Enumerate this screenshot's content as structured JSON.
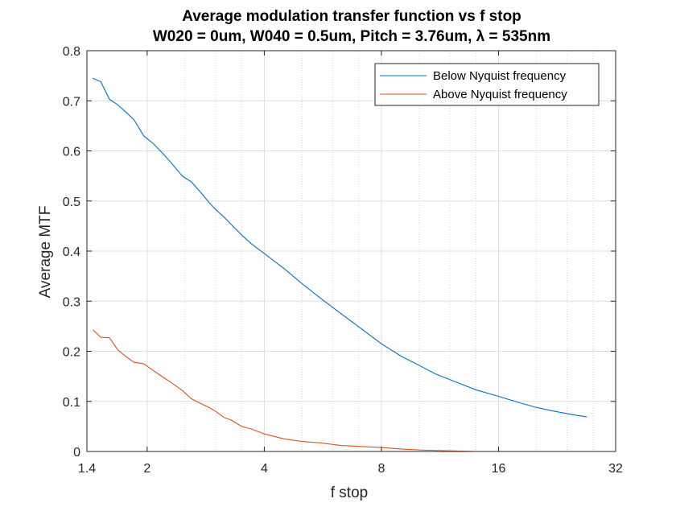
{
  "chart_data": {
    "type": "line",
    "title": "Average modulation transfer function vs f stop",
    "subtitle": "W020 = 0um, W040 = 0.5um, Pitch = 3.76um, λ = 535nm",
    "xlabel": "f stop",
    "ylabel": "Average MTF",
    "x_scale": "log2",
    "xlim": [
      1.4,
      32
    ],
    "ylim": [
      0,
      0.8
    ],
    "x_ticks": [
      1.4,
      2,
      4,
      8,
      16,
      32
    ],
    "x_tick_labels": [
      "1.4",
      "2",
      "4",
      "8",
      "16",
      "32"
    ],
    "y_ticks": [
      0,
      0.1,
      0.2,
      0.3,
      0.4,
      0.5,
      0.6,
      0.7,
      0.8
    ],
    "y_tick_labels": [
      "0",
      "0.1",
      "0.2",
      "0.3",
      "0.4",
      "0.5",
      "0.6",
      "0.7",
      "0.8"
    ],
    "grid": true,
    "minor_grid_x": true,
    "legend_position": "top-right",
    "series": [
      {
        "name": "Below Nyquist frequency",
        "color": "#0072BD",
        "points": [
          [
            1.45,
            0.745
          ],
          [
            1.52,
            0.738
          ],
          [
            1.6,
            0.703
          ],
          [
            1.68,
            0.692
          ],
          [
            1.76,
            0.678
          ],
          [
            1.85,
            0.662
          ],
          [
            1.96,
            0.63
          ],
          [
            2.07,
            0.615
          ],
          [
            2.2,
            0.594
          ],
          [
            2.33,
            0.572
          ],
          [
            2.46,
            0.55
          ],
          [
            2.6,
            0.538
          ],
          [
            2.76,
            0.515
          ],
          [
            2.9,
            0.495
          ],
          [
            3.0,
            0.483
          ],
          [
            3.15,
            0.468
          ],
          [
            3.3,
            0.452
          ],
          [
            3.5,
            0.432
          ],
          [
            3.7,
            0.415
          ],
          [
            4.0,
            0.395
          ],
          [
            4.5,
            0.365
          ],
          [
            5.0,
            0.335
          ],
          [
            5.6,
            0.305
          ],
          [
            6.3,
            0.275
          ],
          [
            7.1,
            0.245
          ],
          [
            8.0,
            0.215
          ],
          [
            9.0,
            0.19
          ],
          [
            10.0,
            0.172
          ],
          [
            11.0,
            0.155
          ],
          [
            12.5,
            0.138
          ],
          [
            14.0,
            0.123
          ],
          [
            16.0,
            0.11
          ],
          [
            18.0,
            0.098
          ],
          [
            20.0,
            0.088
          ],
          [
            22.0,
            0.081
          ],
          [
            25.0,
            0.073
          ],
          [
            27.0,
            0.069
          ]
        ]
      },
      {
        "name": "Above Nyquist frequency",
        "color": "#D95319",
        "points": [
          [
            1.45,
            0.243
          ],
          [
            1.52,
            0.228
          ],
          [
            1.6,
            0.227
          ],
          [
            1.68,
            0.203
          ],
          [
            1.76,
            0.19
          ],
          [
            1.85,
            0.178
          ],
          [
            1.96,
            0.175
          ],
          [
            2.07,
            0.162
          ],
          [
            2.2,
            0.148
          ],
          [
            2.33,
            0.135
          ],
          [
            2.46,
            0.122
          ],
          [
            2.6,
            0.105
          ],
          [
            2.76,
            0.095
          ],
          [
            2.9,
            0.087
          ],
          [
            3.0,
            0.08
          ],
          [
            3.15,
            0.068
          ],
          [
            3.3,
            0.062
          ],
          [
            3.5,
            0.05
          ],
          [
            3.7,
            0.045
          ],
          [
            4.0,
            0.035
          ],
          [
            4.5,
            0.025
          ],
          [
            5.0,
            0.02
          ],
          [
            5.6,
            0.017
          ],
          [
            6.3,
            0.012
          ],
          [
            7.1,
            0.01
          ],
          [
            8.0,
            0.008
          ],
          [
            9.0,
            0.005
          ],
          [
            10.0,
            0.003
          ],
          [
            11.0,
            0.002
          ],
          [
            12.5,
            0.001
          ],
          [
            14.0,
            0.0
          ],
          [
            16.0,
            0.0
          ],
          [
            20.0,
            0.0
          ],
          [
            27.0,
            0.0
          ]
        ]
      }
    ]
  }
}
